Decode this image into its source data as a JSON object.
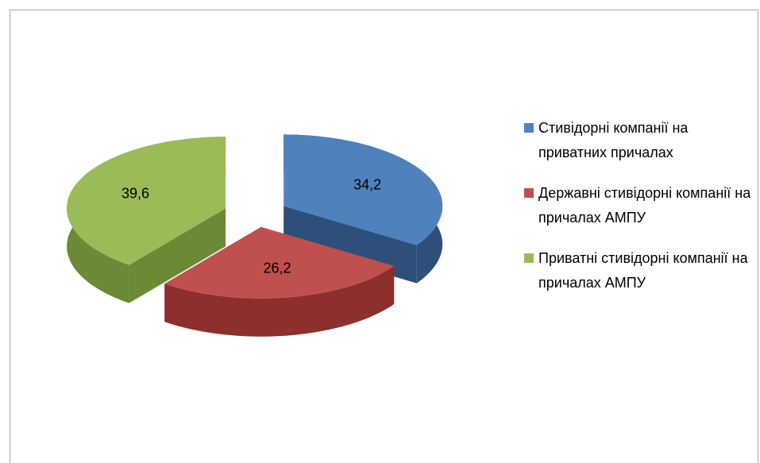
{
  "chart_data": {
    "type": "pie3d",
    "categories": [
      "Стивідорні компанії на приватних причалах",
      "Державні стивідорні компанії на причалах АМПУ",
      "Приватні стивідорні компанії на причалах АМПУ"
    ],
    "values": [
      34.2,
      26.2,
      39.6
    ],
    "value_labels": [
      "34,2",
      "26,2",
      "39,6"
    ],
    "colors": [
      "#4f81bd",
      "#c0504d",
      "#9bbb59"
    ],
    "side_colors": [
      "#2d4f7a",
      "#8c2f2d",
      "#6c8a36"
    ],
    "legend": "right"
  }
}
